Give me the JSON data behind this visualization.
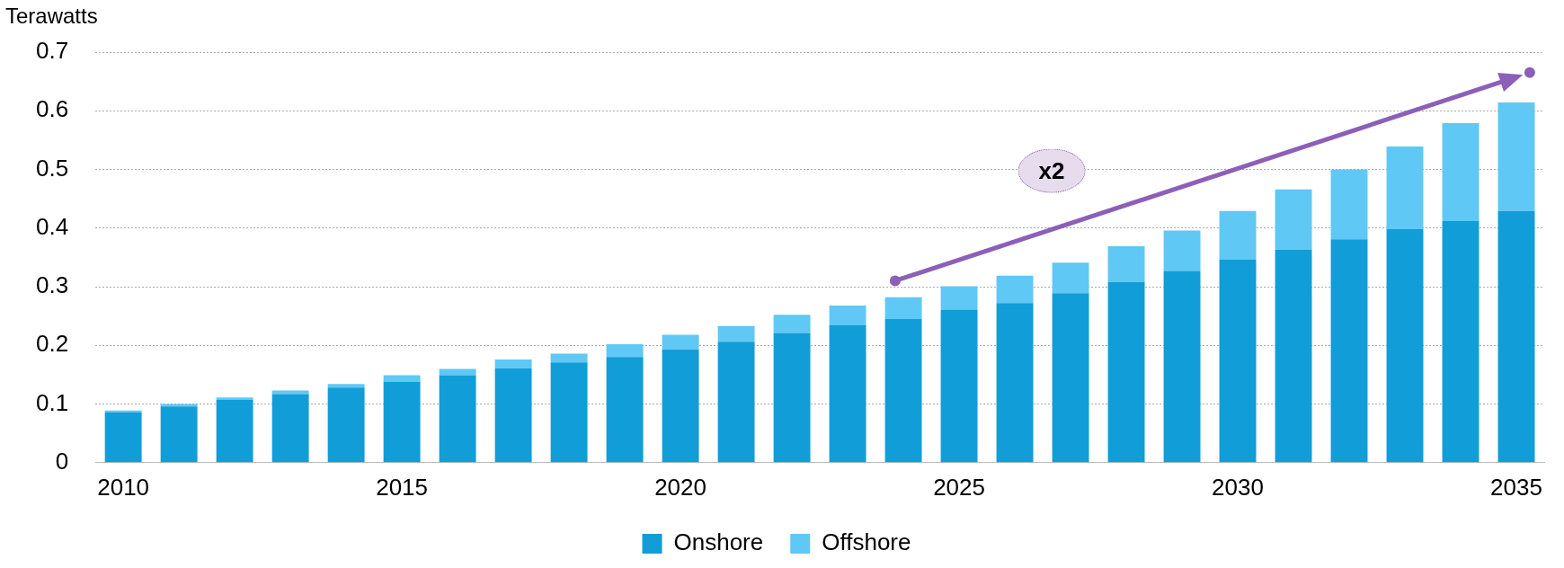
{
  "chart_data": {
    "type": "bar",
    "ylabel": "Terawatts",
    "stacked": true,
    "categories": [
      "2010",
      null,
      null,
      null,
      null,
      "2015",
      null,
      null,
      null,
      null,
      "2020",
      null,
      null,
      null,
      null,
      "2025",
      null,
      null,
      null,
      null,
      "2030",
      null,
      null,
      null,
      null,
      "2035"
    ],
    "series": [
      {
        "name": "Onshore",
        "color": "#119dd8",
        "values": [
          0.086,
          0.096,
          0.107,
          0.117,
          0.128,
          0.138,
          0.149,
          0.161,
          0.171,
          0.18,
          0.193,
          0.206,
          0.221,
          0.235,
          0.245,
          0.261,
          0.272,
          0.289,
          0.308,
          0.327,
          0.346,
          0.363,
          0.381,
          0.398,
          0.412,
          0.429
        ]
      },
      {
        "name": "Offshore",
        "color": "#5fc8f5",
        "values": [
          0.003,
          0.004,
          0.004,
          0.006,
          0.006,
          0.011,
          0.011,
          0.015,
          0.015,
          0.022,
          0.025,
          0.027,
          0.031,
          0.033,
          0.037,
          0.04,
          0.047,
          0.052,
          0.061,
          0.069,
          0.083,
          0.103,
          0.119,
          0.141,
          0.167,
          0.185
        ]
      }
    ],
    "ylim": [
      0,
      0.7
    ],
    "yticks": [
      0,
      0.1,
      0.2,
      0.3,
      0.4,
      0.5,
      0.6,
      0.7
    ],
    "grid": "y",
    "legend": "bottom",
    "annotations": [
      "x2"
    ]
  }
}
